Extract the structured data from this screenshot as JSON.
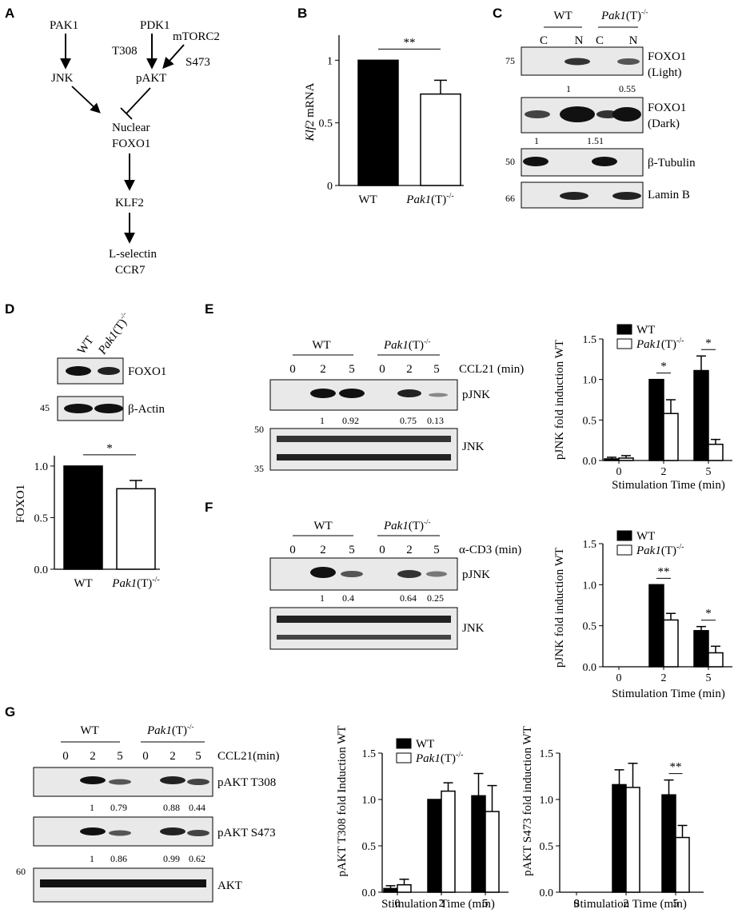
{
  "panels": {
    "A": {
      "letter": "A",
      "nodes": {
        "pak1": "PAK1",
        "pdk1": "PDK1",
        "mtorc2": "mTORC2",
        "t308": "T308",
        "s473": "S473",
        "jnk": "JNK",
        "pakt": "pAKT",
        "nuclear": "Nuclear",
        "foxo1": "FOXO1",
        "klf2": "KLF2",
        "lselectin": "L-selectin",
        "ccr7": "CCR7"
      }
    },
    "B": {
      "letter": "B"
    },
    "C": {
      "letter": "C",
      "groups": {
        "wt": "WT",
        "pak_it": "Pak1",
        "pak_rest": "(T)",
        "pak_sup": "-/-"
      },
      "lanes": [
        "C",
        "N",
        "C",
        "N"
      ],
      "markers": [
        "75",
        "50",
        "66"
      ],
      "blots": [
        {
          "label1": "FOXO1",
          "label2": "(Light)"
        },
        {
          "label1": "FOXO1",
          "label2": "(Dark)"
        },
        {
          "label1": "β-Tubulin",
          "label2": ""
        },
        {
          "label1": "Lamin B",
          "label2": ""
        }
      ],
      "quant_light": [
        "1",
        "0.55"
      ],
      "quant_dark": [
        "1",
        "1.51"
      ]
    },
    "D": {
      "letter": "D",
      "lanes": {
        "wt": "WT",
        "pak_it": "Pak1",
        "pak_rest": "(T)",
        "pak_sup": "-/-"
      },
      "blots": [
        "FOXO1",
        "β-Actin"
      ],
      "marker": "45"
    },
    "E": {
      "letter": "E",
      "groups": {
        "wt": "WT",
        "pak_it": "Pak1",
        "pak_rest": "(T)",
        "pak_sup": "-/-"
      },
      "times": [
        "0",
        "2",
        "5",
        "0",
        "2",
        "5"
      ],
      "treatment": "CCL21 (min)",
      "blots": [
        "pJNK",
        "JNK"
      ],
      "markers": [
        "50",
        "35"
      ],
      "quant": [
        "1",
        "0.92",
        "0.75",
        "0.13"
      ]
    },
    "F": {
      "letter": "F",
      "groups": {
        "wt": "WT",
        "pak_it": "Pak1",
        "pak_rest": "(T)",
        "pak_sup": "-/-"
      },
      "times": [
        "0",
        "2",
        "5",
        "0",
        "2",
        "5"
      ],
      "treatment": "α-CD3 (min)",
      "blots": [
        "pJNK",
        "JNK"
      ],
      "quant": [
        "1",
        "0.4",
        "0.64",
        "0.25"
      ]
    },
    "G": {
      "letter": "G",
      "groups": {
        "wt": "WT",
        "pak_it": "Pak1",
        "pak_rest": "(T)",
        "pak_sup": "-/-"
      },
      "times": [
        "0",
        "2",
        "5",
        "0",
        "2",
        "5"
      ],
      "treatment": "CCL21(min)",
      "blots": [
        "pAKT T308",
        "pAKT S473",
        "AKT"
      ],
      "marker": "60",
      "quant_t308": [
        "1",
        "0.79",
        "0.88",
        "0.44"
      ],
      "quant_s473": [
        "1",
        "0.86",
        "0.99",
        "0.62"
      ]
    }
  },
  "chart_data": [
    {
      "id": "B",
      "type": "bar",
      "categories": [
        "WT",
        "Pak1(T)-/-"
      ],
      "values": [
        1.0,
        0.73
      ],
      "errors": [
        0,
        0.11
      ],
      "ylabel": "Klf2 mRNA",
      "ylim": [
        0,
        1.2
      ],
      "yticks": [
        "0",
        "0.5",
        "1"
      ],
      "significance": [
        "**"
      ]
    },
    {
      "id": "D",
      "type": "bar",
      "categories": [
        "WT",
        "Pak1(T)-/-"
      ],
      "values": [
        1.0,
        0.78
      ],
      "errors": [
        0,
        0.08
      ],
      "ylabel": "FOXO1",
      "ylim": [
        0,
        1.1
      ],
      "yticks": [
        "0.0",
        "0.5",
        "1.0"
      ],
      "significance": [
        "*"
      ]
    },
    {
      "id": "E",
      "type": "bar",
      "categories": [
        "0",
        "2",
        "5"
      ],
      "series": [
        {
          "name": "WT",
          "values": [
            0.02,
            1.0,
            1.11
          ],
          "errors": [
            0.02,
            0,
            0.18
          ]
        },
        {
          "name": "Pak1(T)-/-",
          "values": [
            0.03,
            0.58,
            0.2
          ],
          "errors": [
            0.03,
            0.17,
            0.06
          ]
        }
      ],
      "xlabel": "Stimulation Time (min)",
      "ylabel": "pJNK fold induction WT",
      "ylim": [
        0,
        1.5
      ],
      "yticks": [
        "0.0",
        "0.5",
        "1.0",
        "1.5"
      ],
      "significance": [
        "*",
        "*"
      ]
    },
    {
      "id": "F",
      "type": "bar",
      "categories": [
        "0",
        "2",
        "5"
      ],
      "series": [
        {
          "name": "WT",
          "values": [
            0,
            1.0,
            0.44
          ],
          "errors": [
            0,
            0,
            0.05
          ]
        },
        {
          "name": "Pak1(T)-/-",
          "values": [
            0,
            0.57,
            0.17
          ],
          "errors": [
            0,
            0.08,
            0.08
          ]
        }
      ],
      "xlabel": "Stimulation Time (min)",
      "ylabel": "pJNK fold induction WT",
      "ylim": [
        0,
        1.5
      ],
      "yticks": [
        "0.0",
        "0.5",
        "1.0",
        "1.5"
      ],
      "significance": [
        "**",
        "*"
      ]
    },
    {
      "id": "G1",
      "type": "bar",
      "categories": [
        "0",
        "2",
        "5"
      ],
      "series": [
        {
          "name": "WT",
          "values": [
            0.04,
            1.0,
            1.04
          ],
          "errors": [
            0.03,
            0,
            0.24
          ]
        },
        {
          "name": "Pak1(T)-/-",
          "values": [
            0.08,
            1.09,
            0.87
          ],
          "errors": [
            0.06,
            0.09,
            0.28
          ]
        }
      ],
      "xlabel": "Stimulation Time (min)",
      "ylabel": "pAKT T308 fold Induction WT",
      "ylim": [
        0,
        1.5
      ],
      "yticks": [
        "0.0",
        "0.5",
        "1.0",
        "1.5"
      ]
    },
    {
      "id": "G2",
      "type": "bar",
      "categories": [
        "0",
        "2",
        "5"
      ],
      "series": [
        {
          "name": "WT",
          "values": [
            0,
            1.16,
            1.05
          ],
          "errors": [
            0,
            0.16,
            0.16
          ]
        },
        {
          "name": "Pak1(T)-/-",
          "values": [
            0,
            1.13,
            0.59
          ],
          "errors": [
            0,
            0.26,
            0.13
          ]
        }
      ],
      "xlabel": "Stimulation Time (min)",
      "ylabel": "pAKT S473 fold induction WT",
      "ylim": [
        0,
        1.5
      ],
      "yticks": [
        "0.0",
        "0.5",
        "1.0",
        "1.5"
      ],
      "significance": [
        "**"
      ]
    }
  ]
}
